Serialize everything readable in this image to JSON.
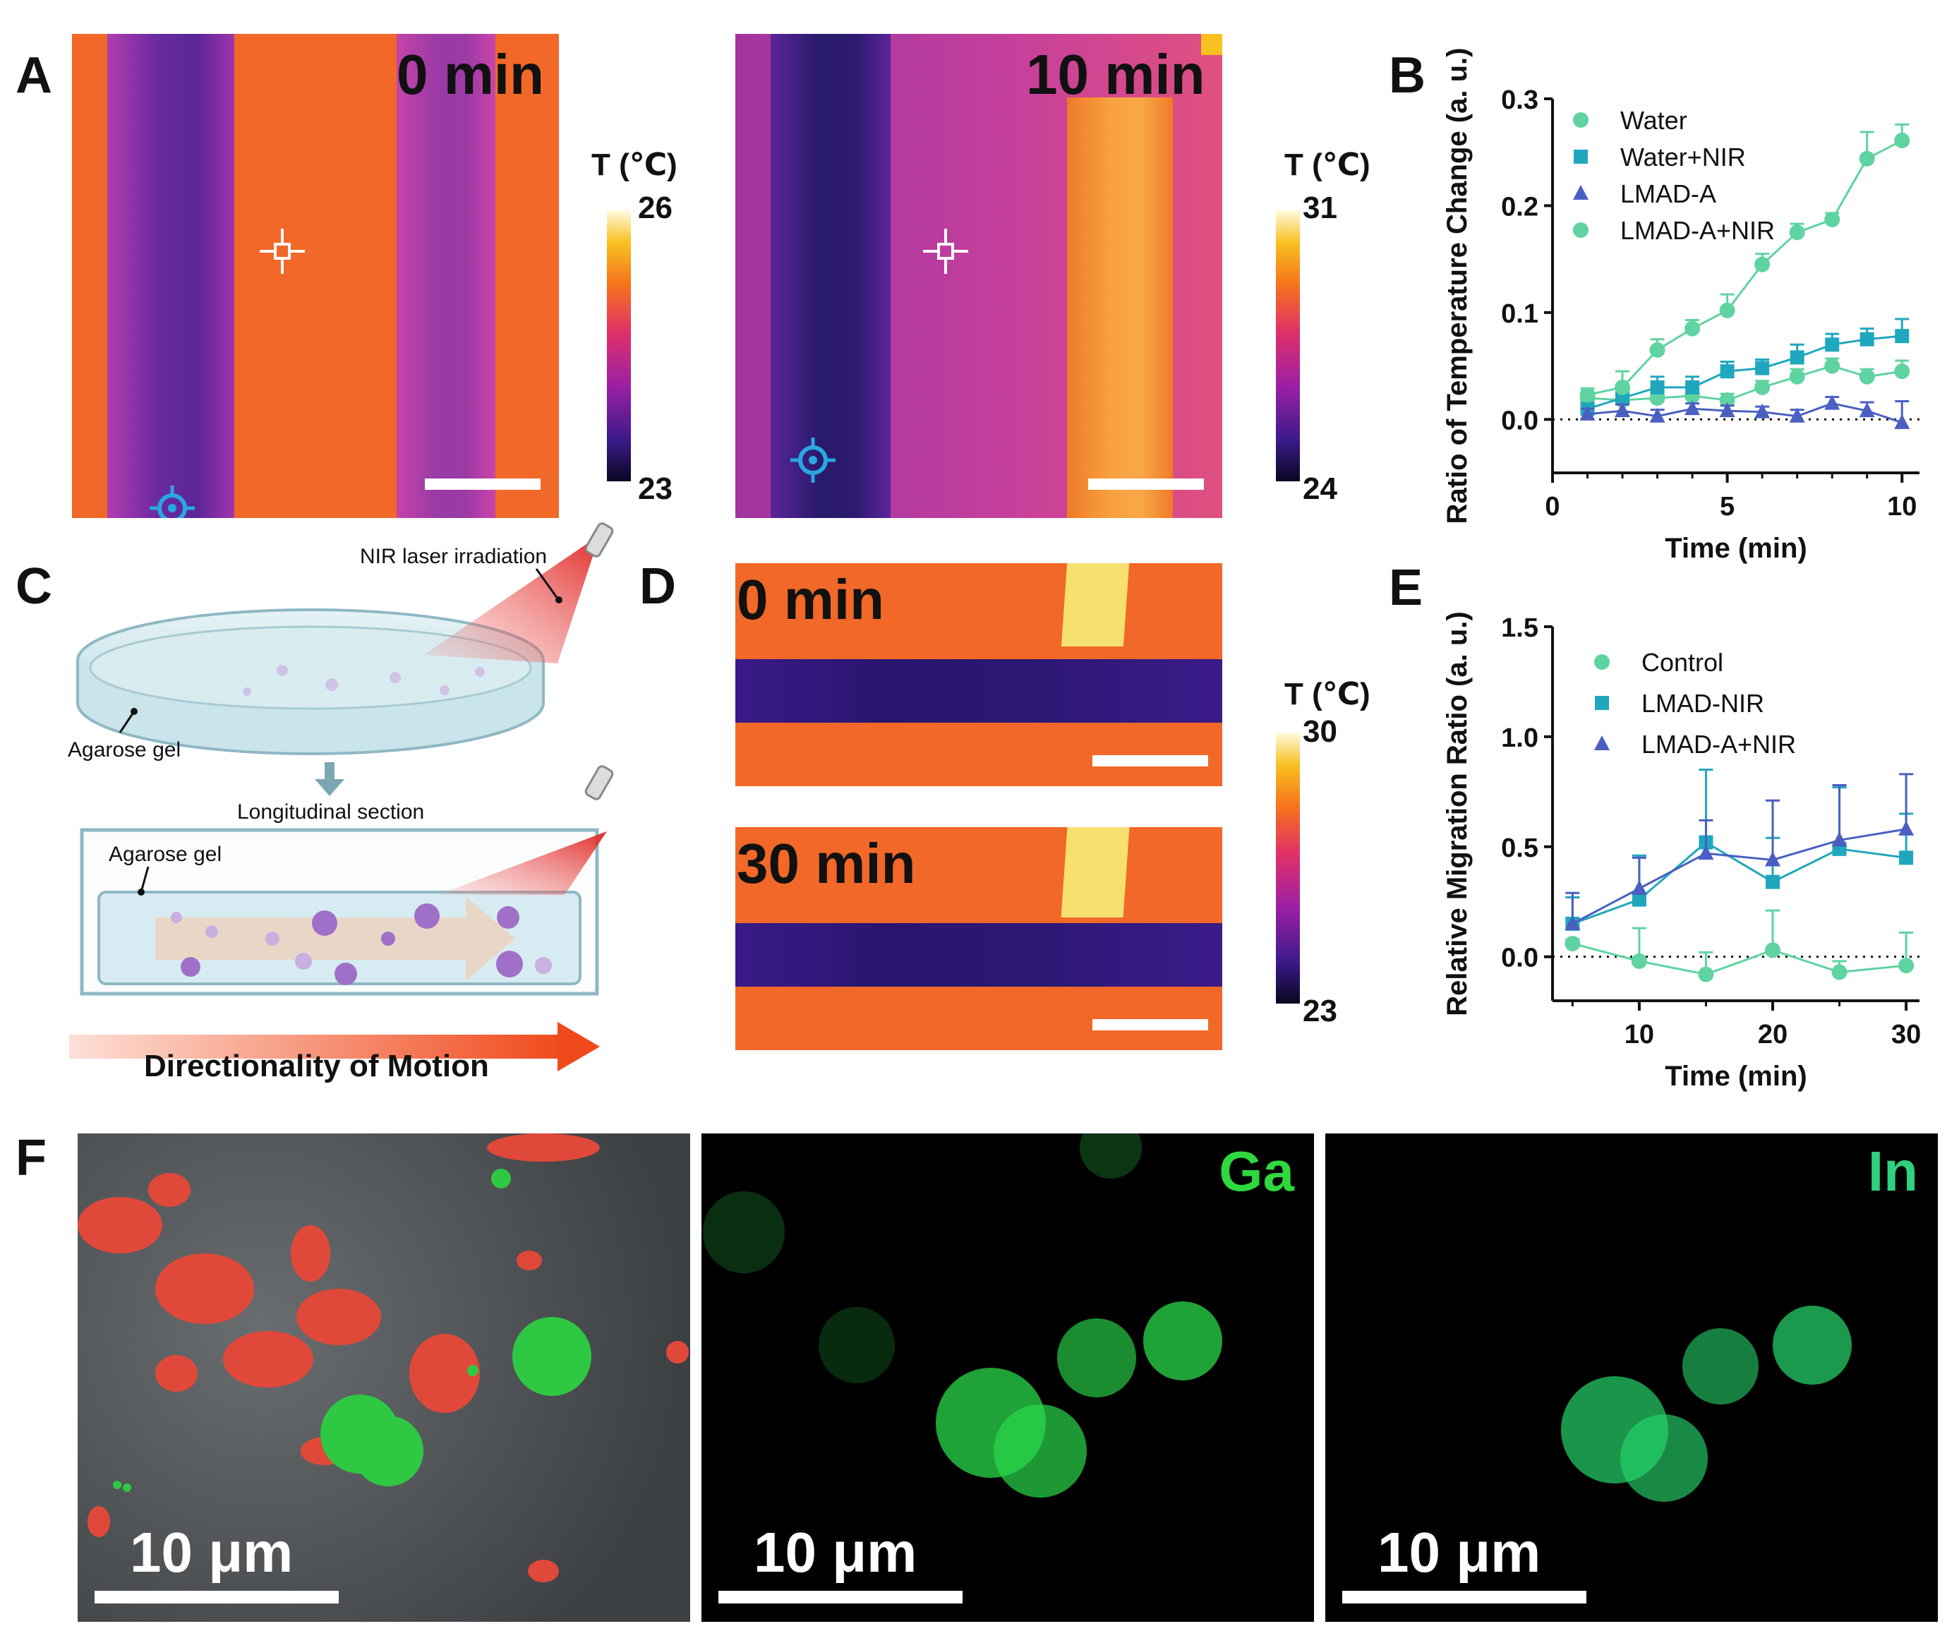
{
  "panels": {
    "A": {
      "label": "A",
      "left": {
        "time": "0 min",
        "cbar_title": "T (℃)",
        "cbar_max": "26",
        "cbar_min": "23"
      },
      "right": {
        "time": "10 min",
        "cbar_title": "T (℃)",
        "cbar_max": "31",
        "cbar_min": "24"
      }
    },
    "C": {
      "label": "C",
      "laser_label": "NIR laser irradiation",
      "gel_label_top": "Agarose gel",
      "section_label": "Longitudinal section",
      "gel_label_bottom": "Agarose gel",
      "motion_label": "Directionality of Motion"
    },
    "D": {
      "label": "D",
      "top_time": "0 min",
      "bottom_time": "30 min",
      "cbar_title": "T (℃)",
      "cbar_max": "30",
      "cbar_min": "23"
    },
    "F": {
      "label": "F",
      "scale_text": "10 μm",
      "ga_label": "Ga",
      "in_label": "In"
    }
  },
  "colors": {
    "water": "#5fd3a1",
    "water_nir": "#1fa7bd",
    "lmad_a": "#4a5fc1",
    "lmad_a_nir": "#5fd3a1",
    "control": "#5fd3a1",
    "lmad_nir": "#1fa7bd",
    "lmad_a_nir_e": "#4a5fc1"
  },
  "chart_data": [
    {
      "panel": "B",
      "type": "line",
      "xlabel": "Time (min)",
      "ylabel": "Ratio of Temperature Change (a. u.)",
      "xlim": [
        0,
        10.5
      ],
      "ylim": [
        -0.05,
        0.3
      ],
      "xticks": [
        0,
        5,
        10
      ],
      "yticks": [
        0.0,
        0.1,
        0.2,
        0.3
      ],
      "ytick_labels": [
        "0.0",
        "0.1",
        "0.2",
        "0.3"
      ],
      "xtick_labels": [
        "0",
        "5",
        "10"
      ],
      "x": [
        1,
        2,
        3,
        4,
        5,
        6,
        7,
        8,
        9,
        10
      ],
      "series": [
        {
          "name": "Water",
          "marker": "circle",
          "values": [
            0.02,
            0.018,
            0.02,
            0.022,
            0.018,
            0.03,
            0.04,
            0.05,
            0.04,
            0.045
          ],
          "err": [
            0.005,
            0.006,
            0.006,
            0.006,
            0.006,
            0.006,
            0.007,
            0.007,
            0.007,
            0.01
          ]
        },
        {
          "name": "Water+NIR",
          "marker": "square",
          "values": [
            0.01,
            0.02,
            0.03,
            0.03,
            0.045,
            0.048,
            0.058,
            0.07,
            0.075,
            0.078
          ],
          "err": [
            0.005,
            0.01,
            0.01,
            0.01,
            0.009,
            0.008,
            0.012,
            0.01,
            0.01,
            0.016
          ]
        },
        {
          "name": "LMAD-A",
          "marker": "triangle",
          "values": [
            0.005,
            0.008,
            0.003,
            0.01,
            0.008,
            0.007,
            0.003,
            0.015,
            0.008,
            -0.003
          ],
          "err": [
            0.005,
            0.006,
            0.006,
            0.005,
            0.005,
            0.005,
            0.006,
            0.006,
            0.008,
            0.02
          ]
        },
        {
          "name": "LMAD-A+NIR",
          "marker": "circle",
          "values": [
            0.023,
            0.03,
            0.065,
            0.085,
            0.102,
            0.145,
            0.175,
            0.187,
            0.244,
            0.261
          ],
          "err": [
            0.006,
            0.015,
            0.01,
            0.008,
            0.015,
            0.01,
            0.008,
            0.006,
            0.025,
            0.015
          ]
        }
      ]
    },
    {
      "panel": "E",
      "type": "line",
      "xlabel": "Time (min)",
      "ylabel": "Relative Migration Ratio (a. u.)",
      "xlim": [
        3.5,
        31
      ],
      "ylim": [
        -0.2,
        1.5
      ],
      "xticks": [
        10,
        20,
        30
      ],
      "yticks": [
        0.0,
        0.5,
        1.0,
        1.5
      ],
      "ytick_labels": [
        "0.0",
        "0.5",
        "1.0",
        "1.5"
      ],
      "xtick_labels": [
        "10",
        "20",
        "30"
      ],
      "x": [
        5,
        10,
        15,
        20,
        25,
        30
      ],
      "series": [
        {
          "name": "Control",
          "marker": "circle",
          "values": [
            0.06,
            -0.02,
            -0.08,
            0.03,
            -0.07,
            -0.04
          ],
          "err": [
            0.02,
            0.15,
            0.1,
            0.18,
            0.05,
            0.15
          ]
        },
        {
          "name": "LMAD-NIR",
          "marker": "square",
          "values": [
            0.15,
            0.26,
            0.52,
            0.34,
            0.49,
            0.45
          ],
          "err": [
            0.12,
            0.2,
            0.33,
            0.2,
            0.28,
            0.2
          ]
        },
        {
          "name": "LMAD-A+NIR",
          "marker": "triangle",
          "values": [
            0.15,
            0.31,
            0.47,
            0.44,
            0.53,
            0.58
          ],
          "err": [
            0.14,
            0.14,
            0.15,
            0.27,
            0.25,
            0.25
          ]
        }
      ]
    }
  ]
}
